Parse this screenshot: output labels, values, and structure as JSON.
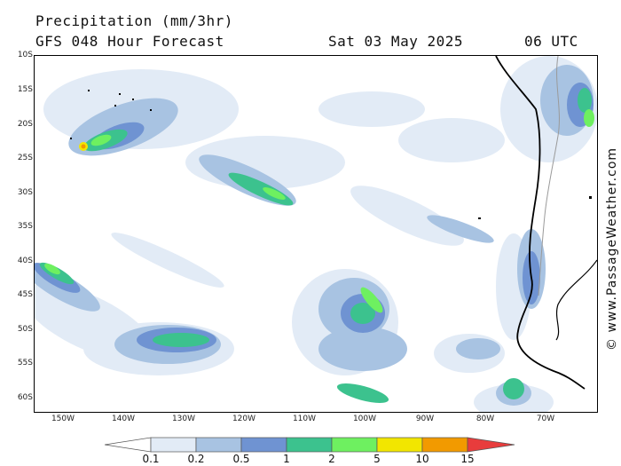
{
  "header": {
    "title": "Precipitation (mm/3hr)",
    "model": "GFS 048 Hour Forecast",
    "date": "Sat 03 May 2025",
    "time": "06 UTC"
  },
  "credit": "© www.PassageWeather.com",
  "axes": {
    "lat_labels": [
      "10S",
      "15S",
      "20S",
      "25S",
      "30S",
      "35S",
      "40S",
      "45S",
      "50S",
      "55S",
      "60S"
    ],
    "lon_labels": [
      "150W",
      "140W",
      "130W",
      "120W",
      "110W",
      "100W",
      "90W",
      "80W",
      "70W"
    ]
  },
  "legend": {
    "labels": [
      "0.1",
      "0.2",
      "0.5",
      "1",
      "2",
      "5",
      "10",
      "15"
    ],
    "colors": [
      "#ffffff",
      "#e2ebf6",
      "#a8c3e2",
      "#6f93d2",
      "#3cc28e",
      "#6ef060",
      "#f2e600",
      "#f29a00",
      "#e83c3c"
    ]
  },
  "colors": {
    "light": "#e2ebf6",
    "pale": "#a8c3e2",
    "blue": "#6f93d2",
    "teal": "#3cc28e",
    "green": "#6ef060",
    "yellow": "#f2e600",
    "orange": "#f29a00",
    "red": "#e83c3c",
    "coast": "#000000",
    "border": "#9a9a9a"
  }
}
